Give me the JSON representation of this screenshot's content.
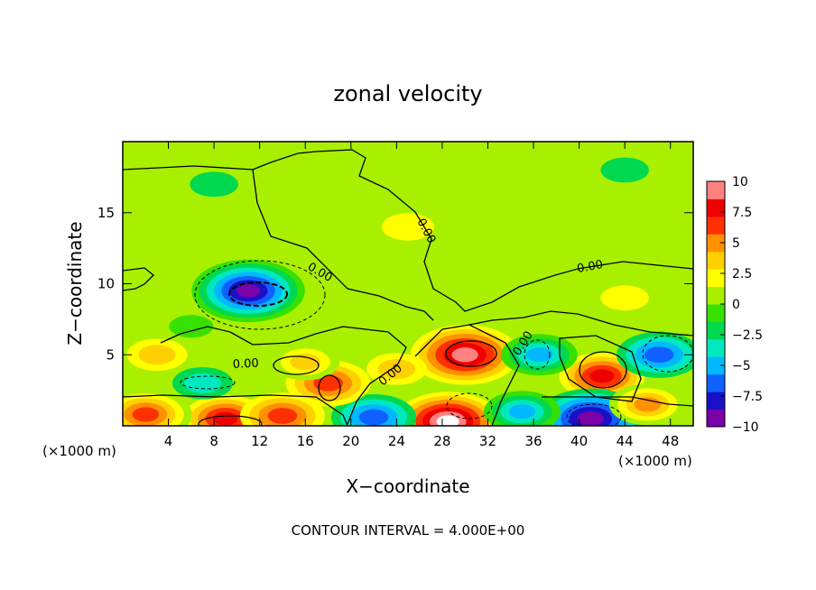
{
  "chart_data": {
    "type": "heatmap",
    "title": "zonal velocity",
    "xlabel": "X−coordinate",
    "ylabel": "Z−coordinate",
    "x_unit_left": "(×1000 m)",
    "x_unit_right": "(×1000 m)",
    "footer": "CONTOUR INTERVAL = 4.000E+00",
    "xlim": [
      0,
      50
    ],
    "ylim": [
      0,
      20
    ],
    "x_ticks": [
      4,
      8,
      12,
      16,
      20,
      24,
      28,
      32,
      36,
      40,
      44,
      48
    ],
    "y_ticks": [
      5,
      10,
      15
    ],
    "colorbar": {
      "min": -10,
      "max": 10,
      "tick_values": [
        10,
        7.5,
        5,
        2.5,
        0,
        -2.5,
        -5,
        -7.5,
        -10
      ],
      "tick_labels": [
        "10",
        "7.5",
        "5",
        "2.5",
        "0",
        "−2.5",
        "−5",
        "−7.5",
        "−10"
      ],
      "colors": [
        "#7a00a8",
        "#1a10c8",
        "#1060ff",
        "#00b8ff",
        "#00e8c0",
        "#00d850",
        "#38e000",
        "#a8f000",
        "#ffff00",
        "#ffd000",
        "#ff9000",
        "#ff3000",
        "#ee0000",
        "#ff8080"
      ]
    },
    "contour_labels": [
      "0.00",
      "0.00",
      "0.00",
      "0.00",
      "0.00",
      "0.00"
    ],
    "features": [
      {
        "x": 11,
        "z": 9.5,
        "value": -9.5
      },
      {
        "x": 30,
        "z": 5,
        "value": 9
      },
      {
        "x": 42,
        "z": 3.5,
        "value": 8
      },
      {
        "x": 28.5,
        "z": 0.3,
        "value": 10.5
      },
      {
        "x": 41,
        "z": 0.5,
        "value": -9
      },
      {
        "x": 9,
        "z": 0.5,
        "value": 8
      },
      {
        "x": 2,
        "z": 0.8,
        "value": 7
      },
      {
        "x": 14,
        "z": 0.7,
        "value": 6
      },
      {
        "x": 22,
        "z": 0.6,
        "value": -6
      },
      {
        "x": 35,
        "z": 1.0,
        "value": -5
      },
      {
        "x": 46,
        "z": 1.5,
        "value": 5
      },
      {
        "x": 18,
        "z": 3,
        "value": 6
      },
      {
        "x": 16,
        "z": 4.5,
        "value": 4
      },
      {
        "x": 36.5,
        "z": 5,
        "value": -5
      },
      {
        "x": 47,
        "z": 5,
        "value": -6
      },
      {
        "x": 7,
        "z": 3,
        "value": -3
      },
      {
        "x": 3,
        "z": 5,
        "value": 3
      },
      {
        "x": 25,
        "z": 14,
        "value": 2
      },
      {
        "x": 44,
        "z": 18,
        "value": -1.5
      },
      {
        "x": 8,
        "z": 17,
        "value": -1.5
      },
      {
        "x": 24,
        "z": 4,
        "value": 3
      },
      {
        "x": 6,
        "z": 7,
        "value": -1
      },
      {
        "x": 44,
        "z": 9,
        "value": 1.5
      }
    ]
  }
}
